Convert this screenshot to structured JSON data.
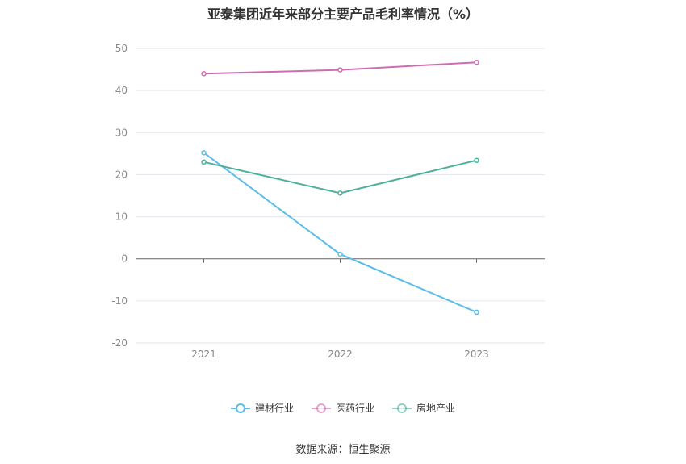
{
  "chart_data": {
    "type": "line",
    "title": "亚泰集团近年来部分主要产品毛利率情况（%）",
    "categories": [
      "2021",
      "2022",
      "2023"
    ],
    "series": [
      {
        "name": "建材行业",
        "color": "#5bbde8",
        "values": [
          25.2,
          1.1,
          -12.7
        ]
      },
      {
        "name": "医药行业",
        "color": "#cf6bb2",
        "values": [
          44.0,
          44.9,
          46.7
        ]
      },
      {
        "name": "房地产业",
        "color": "#4cb09a",
        "values": [
          23.0,
          15.6,
          23.4
        ]
      }
    ],
    "ylim": [
      -20,
      50
    ],
    "yticks": [
      -20,
      -10,
      0,
      10,
      20,
      30,
      40,
      50
    ],
    "grid": true,
    "legend_position": "bottom"
  },
  "source": "数据来源：恒生聚源"
}
